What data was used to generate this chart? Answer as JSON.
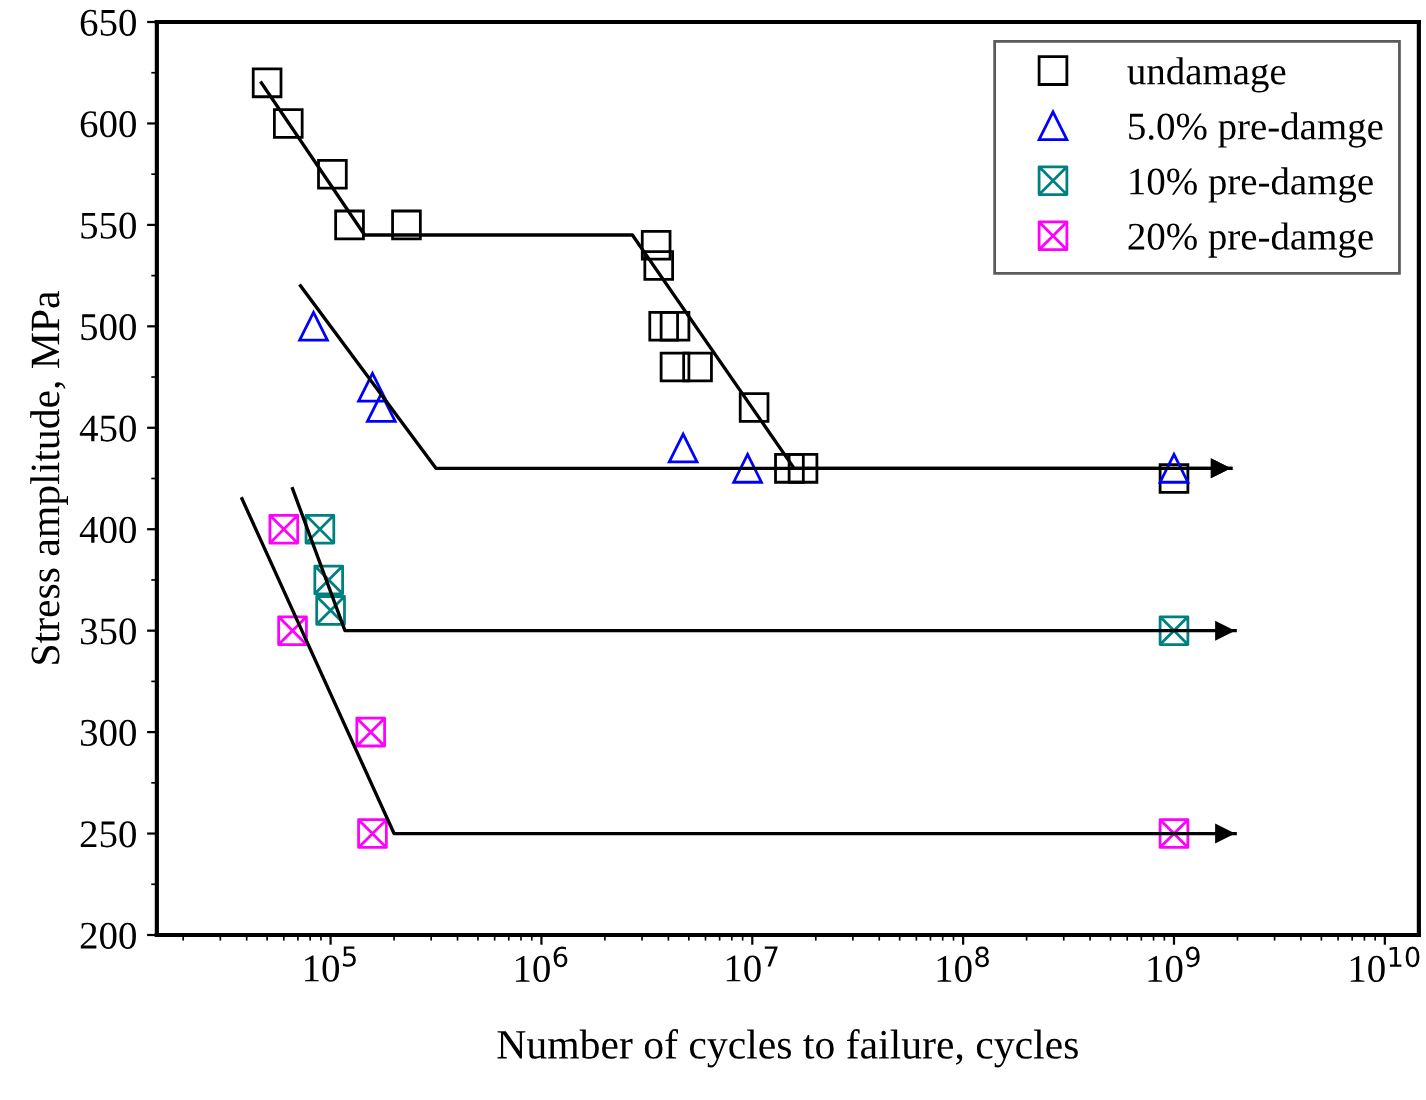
{
  "chart_data": {
    "type": "scatter",
    "xlabel": "Number of cycles to failure, cycles",
    "ylabel": "Stress amplitude, MPa",
    "log": "x",
    "xlim": [
      15000,
      14500000000
    ],
    "ylim": [
      200,
      650
    ],
    "xticks": [
      {
        "value": 100000,
        "label": "10$^{5}$"
      },
      {
        "value": 1000000,
        "label": "10$^{6}$"
      },
      {
        "value": 10000000,
        "label": "10$^{7}$"
      },
      {
        "value": 100000000,
        "label": "10$^{8}$"
      },
      {
        "value": 1000000000,
        "label": "10$^{9}$"
      },
      {
        "value": 10000000000,
        "label": "10$^{10}$"
      }
    ],
    "yticks": [
      200,
      250,
      300,
      350,
      400,
      450,
      500,
      550,
      600,
      650
    ],
    "legend": "top right",
    "grid": false,
    "series": [
      {
        "name": "undamage",
        "color": "#000000",
        "marker": "square",
        "x": [
          50000,
          63000,
          102000,
          123000,
          229000,
          3500000,
          3600000,
          3800000,
          4300000,
          4300000,
          5500000,
          10200000,
          15000000,
          17400000,
          1000000000
        ],
        "values": [
          620,
          600,
          575,
          550,
          550,
          540,
          530,
          500,
          500,
          480,
          480,
          460,
          430,
          430,
          425
        ]
      },
      {
        "name": "5.0% pre-damge",
        "color": "#0000ff",
        "marker": "triangle",
        "x": [
          83000,
          158000,
          174000,
          4700000,
          9500000,
          1000000000
        ],
        "values": [
          500,
          470,
          460,
          440,
          430,
          430
        ]
      },
      {
        "name": "10% pre-damge",
        "color": "#008080",
        "marker": "cross",
        "x": [
          89000,
          98000,
          100000,
          1000000000
        ],
        "values": [
          400,
          375,
          360,
          350
        ]
      },
      {
        "name": "20% pre-damge",
        "color": "#ff00ff",
        "marker": "cross",
        "x": [
          60000,
          66000,
          155000,
          158000,
          1000000000
        ],
        "values": [
          400,
          350,
          300,
          250,
          250
        ]
      },
      {
        "type": "line",
        "color": "#000000",
        "marker": "none",
        "x": [
          47000,
          145000,
          2700000,
          15800000,
          1860000000
        ],
        "values": [
          620,
          545,
          545,
          430,
          430
        ]
      },
      {
        "type": "line",
        "color": "#000000",
        "marker": "none",
        "x": [
          72000,
          316000,
          1860000000
        ],
        "values": [
          520,
          430,
          430
        ]
      },
      {
        "type": "line",
        "color": "#000000",
        "marker": "none",
        "x": [
          66000,
          117000,
          1950000000
        ],
        "values": [
          420,
          350,
          350
        ]
      },
      {
        "type": "line",
        "color": "#000000",
        "marker": "none",
        "x": [
          38000,
          200000,
          1950000000
        ],
        "values": [
          415,
          250,
          250
        ]
      }
    ]
  }
}
